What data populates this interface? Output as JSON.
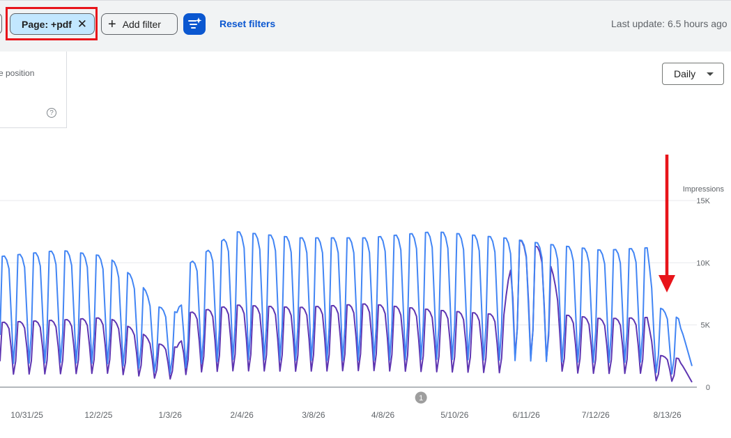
{
  "toolbar": {
    "page_chip_label": "Page: +pdf",
    "page_chip_close_glyph": "✕",
    "add_filter_label": "Add filter",
    "add_filter_glyph": "+",
    "ai_icon": "filter-sparkle-icon",
    "reset_filters_label": "Reset filters",
    "last_update": "Last update: 6.5 hours ago"
  },
  "metric_card": {
    "label": "e position",
    "help_glyph": "?"
  },
  "granularity": {
    "selected": "Daily"
  },
  "colors": {
    "impressions": "#4285f4",
    "clicks": "#5e35b1",
    "highlight": "#e8141a",
    "accent": "#0b57d0"
  },
  "chart_data": {
    "type": "line",
    "right_axis_label": "Impressions",
    "y_ticks": [
      "15K",
      "10K",
      "5K",
      "0"
    ],
    "ylim": [
      0,
      15000
    ],
    "x_ticks": [
      "10/31/25",
      "12/2/25",
      "1/3/26",
      "2/4/26",
      "3/8/26",
      "4/8/26",
      "5/10/26",
      "6/11/26",
      "7/12/26",
      "8/13/26"
    ],
    "x_tick_dates": [
      "2025-10-31",
      "2025-12-02",
      "2026-01-03",
      "2026-02-04",
      "2026-03-08",
      "2026-04-08",
      "2026-05-10",
      "2026-06-11",
      "2026-07-12",
      "2026-08-13"
    ],
    "date_range": [
      "2025-10-19",
      "2026-08-24"
    ],
    "annotation_marker": "1",
    "annotation_date": "2026-04-25",
    "grid": true,
    "series": [
      {
        "key": "impressions",
        "color": "#4285f4",
        "weekly_profile": [
          1.0,
          1.0,
          0.97,
          0.9,
          0.55,
          0.18,
          0.4
        ],
        "level_points": [
          [
            "2025-10-19",
            10500
          ],
          [
            "2025-11-15",
            11000
          ],
          [
            "2025-12-06",
            10500
          ],
          [
            "2025-12-20",
            8500
          ],
          [
            "2025-12-28",
            6500
          ],
          [
            "2026-01-06",
            6000
          ],
          [
            "2026-01-12",
            10000
          ],
          [
            "2026-02-01",
            12500
          ],
          [
            "2026-03-01",
            12000
          ],
          [
            "2026-04-01",
            12000
          ],
          [
            "2026-05-01",
            12500
          ],
          [
            "2026-06-01",
            12000
          ],
          [
            "2026-06-20",
            11500
          ],
          [
            "2026-07-15",
            11000
          ],
          [
            "2026-08-04",
            11200
          ],
          [
            "2026-08-08",
            6500
          ],
          [
            "2026-08-14",
            6000
          ],
          [
            "2026-08-18",
            5500
          ],
          [
            "2026-08-24",
            1700
          ]
        ]
      },
      {
        "key": "clicks",
        "color": "#5e35b1",
        "weekly_profile": [
          1.0,
          1.0,
          0.97,
          0.9,
          0.6,
          0.2,
          0.4
        ],
        "level_points": [
          [
            "2025-10-19",
            5200
          ],
          [
            "2025-11-15",
            5400
          ],
          [
            "2025-12-06",
            5600
          ],
          [
            "2025-12-20",
            4500
          ],
          [
            "2025-12-28",
            3500
          ],
          [
            "2026-01-06",
            3200
          ],
          [
            "2026-01-12",
            6000
          ],
          [
            "2026-02-01",
            6600
          ],
          [
            "2026-03-01",
            6400
          ],
          [
            "2026-04-01",
            6700
          ],
          [
            "2026-05-01",
            6200
          ],
          [
            "2026-06-01",
            5800
          ],
          [
            "2026-06-05",
            12000
          ],
          [
            "2026-06-20",
            11000
          ],
          [
            "2026-06-28",
            5800
          ],
          [
            "2026-07-15",
            5500
          ],
          [
            "2026-08-04",
            5600
          ],
          [
            "2026-08-08",
            2600
          ],
          [
            "2026-08-18",
            2300
          ],
          [
            "2026-08-24",
            400
          ]
        ]
      }
    ]
  }
}
